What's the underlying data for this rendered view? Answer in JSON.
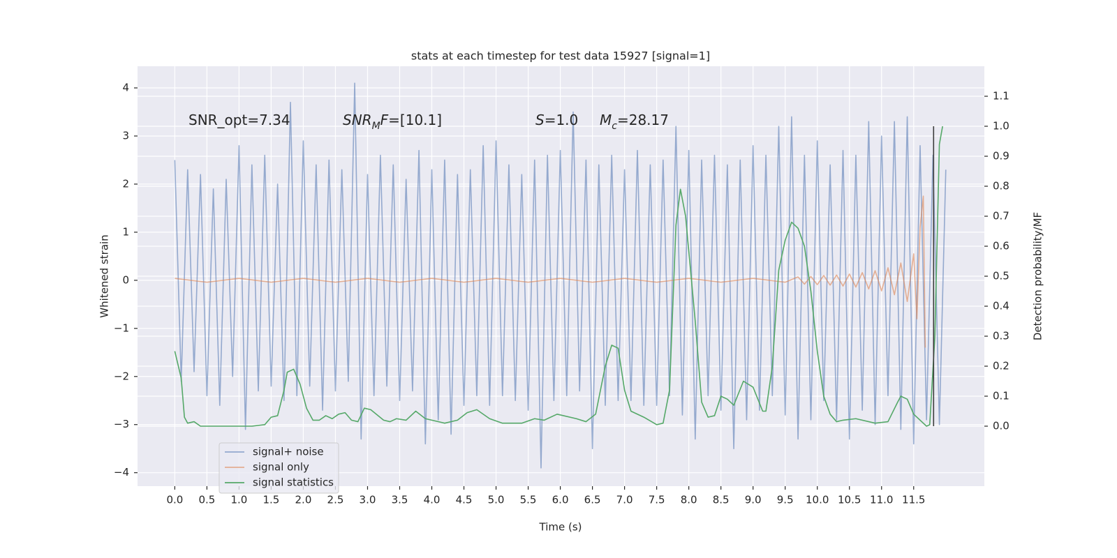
{
  "chart_data": {
    "type": "line",
    "title": "stats at each timestep for test data 15927 [signal=1]",
    "x_label": "Time (s)",
    "y_label": "Whitened strain",
    "y2_label": "Detection probability/MF",
    "annotations": [
      [
        {
          "t": "SNR_opt=7.34"
        }
      ],
      [
        {
          "t": "SNR",
          "italic": true
        },
        {
          "t": "M",
          "italic": true,
          "sub": true
        },
        {
          "t": "F",
          "italic": true
        },
        {
          "t": "=[10.1]"
        }
      ],
      [
        {
          "t": "S",
          "italic": true
        },
        {
          "t": "=1.0"
        }
      ],
      [
        {
          "t": "M",
          "italic": true
        },
        {
          "t": "c",
          "italic": true,
          "sub": true
        },
        {
          "t": "=28.17"
        }
      ]
    ],
    "xlim": [
      -0.58,
      12.6
    ],
    "ylim": [
      -4.28,
      4.45
    ],
    "y2lim": [
      -0.2,
      1.2
    ],
    "xticks": [
      {
        "value": 0,
        "label": "0.0"
      },
      0.5,
      {
        "value": 1,
        "label": "1.0"
      },
      1.5,
      {
        "value": 2,
        "label": "2.0"
      },
      2.5,
      {
        "value": 3,
        "label": "3.0"
      },
      3.5,
      {
        "value": 4,
        "label": "4.0"
      },
      4.5,
      {
        "value": 5,
        "label": "5.0"
      },
      5.5,
      {
        "value": 6,
        "label": "6.0"
      },
      6.5,
      {
        "value": 7,
        "label": "7.0"
      },
      7.5,
      {
        "value": 8,
        "label": "8.0"
      },
      8.5,
      {
        "value": 9,
        "label": "9.0"
      },
      9.5,
      {
        "value": 10,
        "label": "10.0"
      },
      10.5,
      {
        "value": 11,
        "label": "11.0"
      },
      11.5
    ],
    "yticks": [
      {
        "value": -4,
        "label": "−4"
      },
      {
        "value": -3,
        "label": "−3"
      },
      {
        "value": -2,
        "label": "−2"
      },
      {
        "value": -1,
        "label": "−1"
      },
      0,
      1,
      2,
      3,
      4
    ],
    "y2ticks": [
      {
        "value": 0,
        "label": "0.0"
      },
      0.1,
      0.2,
      0.3,
      0.4,
      0.5,
      0.6,
      0.7,
      0.8,
      0.9,
      {
        "value": 1,
        "label": "1.0"
      },
      1.1
    ],
    "grid": true,
    "legend": "lower left",
    "series": [
      {
        "name": "signal+ noise",
        "color": "#4c72b0",
        "alpha": 0.55,
        "x": [
          0.0,
          0.1,
          0.2,
          0.3,
          0.4,
          0.5,
          0.6,
          0.7,
          0.8,
          0.9,
          1.0,
          1.1,
          1.2,
          1.3,
          1.4,
          1.5,
          1.6,
          1.7,
          1.8,
          1.9,
          2.0,
          2.1,
          2.2,
          2.3,
          2.4,
          2.5,
          2.6,
          2.7,
          2.8,
          2.9,
          3.0,
          3.1,
          3.2,
          3.3,
          3.4,
          3.5,
          3.6,
          3.7,
          3.8,
          3.9,
          4.0,
          4.1,
          4.2,
          4.3,
          4.4,
          4.5,
          4.6,
          4.7,
          4.8,
          4.9,
          5.0,
          5.1,
          5.2,
          5.3,
          5.4,
          5.5,
          5.6,
          5.7,
          5.8,
          5.9,
          6.0,
          6.1,
          6.2,
          6.3,
          6.4,
          6.5,
          6.6,
          6.7,
          6.8,
          6.9,
          7.0,
          7.1,
          7.2,
          7.3,
          7.4,
          7.5,
          7.6,
          7.7,
          7.8,
          7.9,
          8.0,
          8.1,
          8.2,
          8.3,
          8.4,
          8.5,
          8.6,
          8.7,
          8.8,
          8.9,
          9.0,
          9.1,
          9.2,
          9.3,
          9.4,
          9.5,
          9.6,
          9.7,
          9.8,
          9.9,
          10.0,
          10.1,
          10.2,
          10.3,
          10.4,
          10.5,
          10.6,
          10.7,
          10.8,
          10.9,
          11.0,
          11.1,
          11.2,
          11.3,
          11.4,
          11.5,
          11.6,
          11.7,
          11.8,
          11.9,
          12.0
        ],
        "values": [
          2.5,
          -2.1,
          2.3,
          -1.9,
          2.2,
          -2.4,
          1.9,
          -2.6,
          2.1,
          -2.0,
          2.8,
          -3.1,
          2.4,
          -2.3,
          2.6,
          -2.2,
          2.0,
          -2.5,
          3.7,
          -2.4,
          2.9,
          -2.2,
          2.4,
          -2.7,
          2.5,
          -2.3,
          2.3,
          -2.1,
          4.1,
          -3.3,
          2.2,
          -2.4,
          2.6,
          -2.2,
          2.4,
          -2.5,
          2.1,
          -2.3,
          2.7,
          -3.4,
          2.3,
          -2.9,
          2.5,
          -3.2,
          2.2,
          -2.6,
          2.3,
          -2.4,
          2.8,
          -2.6,
          2.9,
          -2.4,
          2.4,
          -2.5,
          2.2,
          -2.7,
          2.5,
          -3.9,
          2.6,
          -2.5,
          2.7,
          -2.4,
          3.5,
          -2.3,
          2.5,
          -3.5,
          2.4,
          -2.6,
          2.6,
          -2.5,
          2.3,
          -2.5,
          2.7,
          -2.6,
          2.4,
          -2.6,
          2.5,
          -2.4,
          3.2,
          -2.8,
          2.7,
          -3.3,
          2.5,
          -2.4,
          2.6,
          -2.7,
          2.4,
          -3.5,
          2.5,
          -2.9,
          2.8,
          -2.7,
          2.6,
          -2.4,
          3.2,
          -2.8,
          3.4,
          -3.3,
          2.6,
          -2.9,
          2.9,
          -2.5,
          2.4,
          -2.9,
          2.7,
          -3.3,
          2.6,
          -2.7,
          3.3,
          -3.0,
          3.0,
          -2.4,
          3.3,
          -3.1,
          3.4,
          -3.4,
          2.8,
          -2.9,
          2.6,
          -3.0,
          2.3
        ]
      },
      {
        "name": "signal only",
        "color": "#dd8452",
        "alpha": 0.6,
        "x": [
          0,
          0.5,
          1,
          1.5,
          2,
          2.5,
          3,
          3.5,
          4,
          4.5,
          5,
          5.5,
          6,
          6.5,
          7,
          7.5,
          8,
          8.5,
          9,
          9.5,
          9.7,
          9.8,
          9.9,
          10,
          10.1,
          10.2,
          10.3,
          10.4,
          10.5,
          10.6,
          10.7,
          10.8,
          10.9,
          11,
          11.1,
          11.2,
          11.3,
          11.4,
          11.5,
          11.55,
          11.6,
          11.65,
          11.68
        ],
        "values": [
          0.04,
          -0.04,
          0.04,
          -0.04,
          0.04,
          -0.04,
          0.04,
          -0.04,
          0.04,
          -0.04,
          0.04,
          -0.04,
          0.04,
          -0.04,
          0.04,
          -0.04,
          0.04,
          -0.04,
          0.04,
          -0.04,
          0.07,
          -0.08,
          0.08,
          -0.09,
          0.1,
          -0.1,
          0.11,
          -0.12,
          0.13,
          -0.14,
          0.16,
          -0.18,
          0.2,
          -0.22,
          0.26,
          -0.3,
          0.36,
          -0.44,
          0.55,
          -0.8,
          1.1,
          1.75,
          -1.4
        ]
      },
      {
        "name": "signal statistics",
        "color": "#55a868",
        "alpha": 1,
        "axis": "y2",
        "x": [
          0.0,
          0.1,
          0.15,
          0.2,
          0.3,
          0.4,
          0.6,
          0.9,
          1.2,
          1.4,
          1.5,
          1.6,
          1.7,
          1.75,
          1.85,
          1.95,
          2.05,
          2.15,
          2.25,
          2.35,
          2.45,
          2.55,
          2.65,
          2.75,
          2.85,
          2.95,
          3.05,
          3.25,
          3.35,
          3.45,
          3.6,
          3.75,
          3.9,
          4.2,
          4.4,
          4.55,
          4.7,
          4.9,
          5.1,
          5.4,
          5.6,
          5.75,
          5.95,
          6.25,
          6.4,
          6.55,
          6.7,
          6.8,
          6.9,
          7.0,
          7.1,
          7.3,
          7.5,
          7.6,
          7.7,
          7.8,
          7.87,
          7.95,
          8.1,
          8.2,
          8.3,
          8.4,
          8.5,
          8.6,
          8.7,
          8.85,
          9.0,
          9.15,
          9.2,
          9.3,
          9.4,
          9.5,
          9.6,
          9.7,
          9.8,
          9.9,
          10.0,
          10.1,
          10.2,
          10.3,
          10.4,
          10.6,
          10.9,
          11.1,
          11.25,
          11.3,
          11.4,
          11.5,
          11.7,
          11.75,
          11.83,
          11.9,
          11.95
        ],
        "values": [
          0.25,
          0.16,
          0.03,
          0.01,
          0.015,
          0.0,
          0.0,
          0.0,
          0.0,
          0.005,
          0.03,
          0.035,
          0.12,
          0.18,
          0.19,
          0.14,
          0.06,
          0.02,
          0.02,
          0.035,
          0.025,
          0.04,
          0.045,
          0.02,
          0.015,
          0.06,
          0.055,
          0.02,
          0.015,
          0.025,
          0.02,
          0.05,
          0.025,
          0.01,
          0.02,
          0.045,
          0.055,
          0.025,
          0.01,
          0.01,
          0.025,
          0.02,
          0.04,
          0.025,
          0.015,
          0.04,
          0.2,
          0.27,
          0.26,
          0.12,
          0.05,
          0.03,
          0.005,
          0.01,
          0.12,
          0.67,
          0.79,
          0.7,
          0.35,
          0.08,
          0.03,
          0.035,
          0.1,
          0.09,
          0.07,
          0.15,
          0.13,
          0.05,
          0.05,
          0.2,
          0.52,
          0.62,
          0.68,
          0.66,
          0.6,
          0.45,
          0.25,
          0.1,
          0.04,
          0.015,
          0.02,
          0.025,
          0.01,
          0.015,
          0.08,
          0.1,
          0.09,
          0.04,
          0.0,
          0.005,
          0.3,
          0.94,
          1.0
        ]
      }
    ],
    "vlines": [
      {
        "x": 11.81,
        "ymin": 0,
        "ymax": 1,
        "axis": "y2",
        "color": "#3d3d3d"
      }
    ]
  }
}
